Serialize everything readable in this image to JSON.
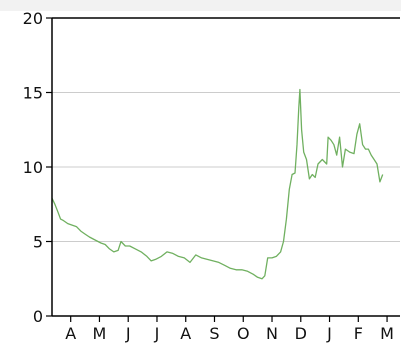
{
  "chart_data": {
    "type": "line",
    "title": "",
    "xlabel": "",
    "ylabel": "",
    "ylim": [
      0,
      20
    ],
    "yticks": [
      0,
      5,
      10,
      15,
      20
    ],
    "xlim": [
      0,
      12.1
    ],
    "grid": "horizontal",
    "legend": "none",
    "x_tick_labels": [
      "A",
      "M",
      "J",
      "J",
      "A",
      "S",
      "O",
      "N",
      "D",
      "J",
      "F",
      "M"
    ],
    "x_tick_positions": [
      0.65,
      1.65,
      2.65,
      3.65,
      4.65,
      5.65,
      6.65,
      7.65,
      8.65,
      9.65,
      10.65,
      11.65
    ],
    "series": [
      {
        "color": "#70b060",
        "points": [
          [
            0.0,
            7.9
          ],
          [
            0.1,
            7.5
          ],
          [
            0.2,
            7.0
          ],
          [
            0.3,
            6.5
          ],
          [
            0.4,
            6.4
          ],
          [
            0.55,
            6.2
          ],
          [
            0.7,
            6.1
          ],
          [
            0.85,
            6.0
          ],
          [
            1.0,
            5.7
          ],
          [
            1.15,
            5.5
          ],
          [
            1.3,
            5.3
          ],
          [
            1.5,
            5.1
          ],
          [
            1.7,
            4.9
          ],
          [
            1.85,
            4.8
          ],
          [
            2.0,
            4.5
          ],
          [
            2.15,
            4.3
          ],
          [
            2.3,
            4.4
          ],
          [
            2.4,
            5.0
          ],
          [
            2.55,
            4.7
          ],
          [
            2.7,
            4.7
          ],
          [
            2.9,
            4.5
          ],
          [
            3.1,
            4.3
          ],
          [
            3.3,
            4.0
          ],
          [
            3.45,
            3.7
          ],
          [
            3.6,
            3.8
          ],
          [
            3.8,
            4.0
          ],
          [
            4.0,
            4.3
          ],
          [
            4.2,
            4.2
          ],
          [
            4.4,
            4.0
          ],
          [
            4.6,
            3.9
          ],
          [
            4.8,
            3.6
          ],
          [
            5.0,
            4.1
          ],
          [
            5.2,
            3.9
          ],
          [
            5.4,
            3.8
          ],
          [
            5.6,
            3.7
          ],
          [
            5.8,
            3.6
          ],
          [
            6.0,
            3.4
          ],
          [
            6.2,
            3.2
          ],
          [
            6.4,
            3.1
          ],
          [
            6.6,
            3.1
          ],
          [
            6.8,
            3.0
          ],
          [
            7.0,
            2.8
          ],
          [
            7.15,
            2.6
          ],
          [
            7.3,
            2.5
          ],
          [
            7.4,
            2.7
          ],
          [
            7.5,
            3.9
          ],
          [
            7.65,
            3.9
          ],
          [
            7.8,
            4.0
          ],
          [
            7.95,
            4.3
          ],
          [
            8.05,
            5.0
          ],
          [
            8.15,
            6.5
          ],
          [
            8.25,
            8.5
          ],
          [
            8.35,
            9.5
          ],
          [
            8.45,
            9.6
          ],
          [
            8.52,
            11.5
          ],
          [
            8.58,
            14.0
          ],
          [
            8.62,
            15.2
          ],
          [
            8.68,
            12.5
          ],
          [
            8.75,
            11.0
          ],
          [
            8.85,
            10.5
          ],
          [
            8.95,
            9.2
          ],
          [
            9.05,
            9.5
          ],
          [
            9.15,
            9.3
          ],
          [
            9.25,
            10.2
          ],
          [
            9.4,
            10.5
          ],
          [
            9.55,
            10.2
          ],
          [
            9.6,
            12.0
          ],
          [
            9.7,
            11.8
          ],
          [
            9.8,
            11.5
          ],
          [
            9.9,
            10.8
          ],
          [
            10.0,
            12.0
          ],
          [
            10.1,
            10.0
          ],
          [
            10.2,
            11.2
          ],
          [
            10.35,
            11.0
          ],
          [
            10.5,
            10.9
          ],
          [
            10.6,
            12.2
          ],
          [
            10.7,
            12.9
          ],
          [
            10.8,
            11.5
          ],
          [
            10.9,
            11.2
          ],
          [
            11.0,
            11.2
          ],
          [
            11.1,
            10.8
          ],
          [
            11.2,
            10.5
          ],
          [
            11.3,
            10.2
          ],
          [
            11.4,
            9.0
          ],
          [
            11.5,
            9.5
          ]
        ]
      }
    ]
  }
}
